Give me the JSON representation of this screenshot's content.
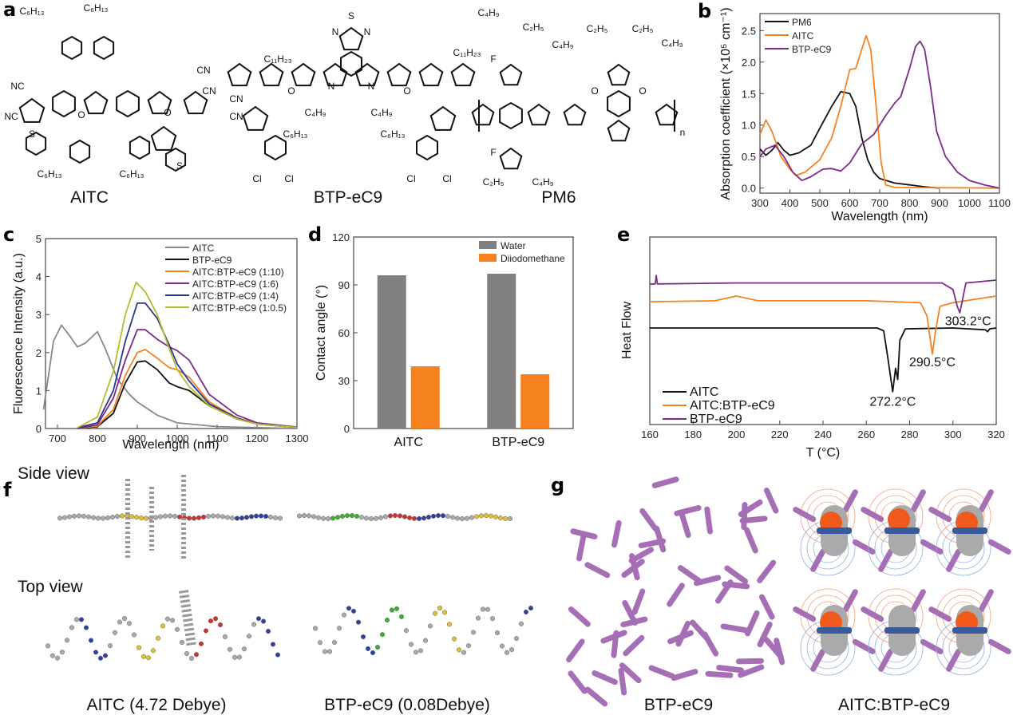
{
  "panels": {
    "a": "a",
    "b": "b",
    "c": "c",
    "d": "d",
    "e": "e",
    "f": "f",
    "g": "g"
  },
  "structures": {
    "names": [
      "AITC",
      "BTP-eC9",
      "PM6"
    ],
    "aitc_labels": [
      "C₆H₁₃",
      "C₆H₁₃",
      "C₆H₁₃",
      "C₆H₁₃",
      "NC",
      "NC",
      "CN",
      "CN",
      "O",
      "O",
      "S",
      "S"
    ],
    "btp_labels": [
      "C₁₁H₂₃",
      "C₁₁H₂₃",
      "C₄H₉",
      "C₄H₉",
      "C₆H₁₃",
      "C₆H₁₃",
      "CN",
      "CN",
      "Cl",
      "Cl",
      "Cl",
      "Cl",
      "O",
      "O",
      "S",
      "N",
      "N",
      "N",
      "N"
    ],
    "pm6_labels": [
      "C₄H₉",
      "C₂H₅",
      "C₄H₉",
      "C₂H₅",
      "C₂H₅",
      "C₄H₉",
      "C₂H₅",
      "C₄H₉",
      "F",
      "F",
      "O",
      "O",
      "n"
    ]
  },
  "chart_data": [
    {
      "panel": "b",
      "type": "line",
      "xlabel": "Wavelength (nm)",
      "ylabel": "Absorption coefficient (×10⁵ cm⁻¹)",
      "xlim": [
        300,
        1100
      ],
      "ylim": [
        -0.08,
        2.77
      ],
      "xticks": [
        300,
        400,
        500,
        600,
        700,
        800,
        900,
        1000,
        1100
      ],
      "yticks": [
        0.0,
        0.5,
        1.0,
        1.5,
        2.0,
        2.5
      ],
      "ytick_labels": [
        "0.0",
        "0.5",
        "1.0",
        "1.5",
        "2.0",
        "2.5"
      ],
      "legend": "top-left",
      "series": [
        {
          "name": "PM6",
          "color": "#111111",
          "points": [
            [
              300,
              0.62
            ],
            [
              320,
              0.52
            ],
            [
              340,
              0.6
            ],
            [
              360,
              0.72
            ],
            [
              380,
              0.6
            ],
            [
              400,
              0.52
            ],
            [
              430,
              0.56
            ],
            [
              470,
              0.68
            ],
            [
              500,
              0.95
            ],
            [
              540,
              1.3
            ],
            [
              570,
              1.53
            ],
            [
              600,
              1.5
            ],
            [
              620,
              1.3
            ],
            [
              640,
              0.8
            ],
            [
              660,
              0.45
            ],
            [
              680,
              0.25
            ],
            [
              700,
              0.15
            ],
            [
              750,
              0.08
            ],
            [
              800,
              0.05
            ],
            [
              850,
              0.02
            ],
            [
              900,
              0.0
            ]
          ]
        },
        {
          "name": "AITC",
          "color": "#f5821f",
          "points": [
            [
              300,
              0.85
            ],
            [
              320,
              1.08
            ],
            [
              340,
              0.9
            ],
            [
              370,
              0.5
            ],
            [
              400,
              0.3
            ],
            [
              420,
              0.2
            ],
            [
              450,
              0.25
            ],
            [
              500,
              0.45
            ],
            [
              540,
              0.8
            ],
            [
              570,
              1.3
            ],
            [
              600,
              1.88
            ],
            [
              620,
              1.9
            ],
            [
              640,
              2.2
            ],
            [
              655,
              2.42
            ],
            [
              670,
              2.2
            ],
            [
              690,
              1.2
            ],
            [
              705,
              0.4
            ],
            [
              720,
              0.05
            ],
            [
              750,
              0.01
            ],
            [
              1100,
              0.0
            ]
          ]
        },
        {
          "name": "BTP-eC9",
          "color": "#7b2a8a",
          "points": [
            [
              300,
              0.5
            ],
            [
              320,
              0.62
            ],
            [
              350,
              0.68
            ],
            [
              380,
              0.5
            ],
            [
              410,
              0.25
            ],
            [
              440,
              0.12
            ],
            [
              470,
              0.18
            ],
            [
              510,
              0.3
            ],
            [
              540,
              0.31
            ],
            [
              570,
              0.27
            ],
            [
              600,
              0.4
            ],
            [
              640,
              0.7
            ],
            [
              680,
              0.85
            ],
            [
              720,
              1.15
            ],
            [
              750,
              1.35
            ],
            [
              770,
              1.45
            ],
            [
              800,
              1.9
            ],
            [
              820,
              2.25
            ],
            [
              835,
              2.33
            ],
            [
              850,
              2.2
            ],
            [
              870,
              1.6
            ],
            [
              890,
              0.9
            ],
            [
              920,
              0.5
            ],
            [
              960,
              0.25
            ],
            [
              1000,
              0.12
            ],
            [
              1050,
              0.05
            ],
            [
              1100,
              0.0
            ]
          ]
        }
      ]
    },
    {
      "panel": "c",
      "type": "line",
      "xlabel": "Wavelength (nm)",
      "ylabel": "Fluorescence Intensity (a.u.)",
      "xlim": [
        670,
        1300
      ],
      "ylim": [
        0,
        5
      ],
      "xticks": [
        700,
        800,
        900,
        1000,
        1100,
        1200,
        1300
      ],
      "yticks": [
        0,
        1,
        2,
        3,
        4,
        5
      ],
      "ytick_labels": [
        "0",
        "1",
        "2",
        "3",
        "4",
        "5"
      ],
      "legend": "top-right",
      "series": [
        {
          "name": "AITC",
          "color": "#888888",
          "points": [
            [
              665,
              0.5
            ],
            [
              690,
              2.3
            ],
            [
              710,
              2.72
            ],
            [
              730,
              2.45
            ],
            [
              750,
              2.15
            ],
            [
              770,
              2.25
            ],
            [
              800,
              2.55
            ],
            [
              820,
              2.1
            ],
            [
              850,
              1.3
            ],
            [
              880,
              0.9
            ],
            [
              900,
              0.7
            ],
            [
              950,
              0.35
            ],
            [
              1000,
              0.15
            ],
            [
              1100,
              0.05
            ],
            [
              1300,
              0.0
            ]
          ]
        },
        {
          "name": "BTP-eC9",
          "color": "#111111",
          "points": [
            [
              750,
              0
            ],
            [
              800,
              0.05
            ],
            [
              840,
              0.4
            ],
            [
              870,
              1.2
            ],
            [
              900,
              1.75
            ],
            [
              920,
              1.78
            ],
            [
              950,
              1.55
            ],
            [
              980,
              1.2
            ],
            [
              1000,
              1.1
            ],
            [
              1030,
              1.0
            ],
            [
              1080,
              0.6
            ],
            [
              1150,
              0.25
            ],
            [
              1200,
              0.12
            ],
            [
              1300,
              0.03
            ]
          ]
        },
        {
          "name": "AITC:BTP-eC9 (1:10)",
          "color": "#f5821f",
          "points": [
            [
              750,
              0
            ],
            [
              800,
              0.07
            ],
            [
              840,
              0.5
            ],
            [
              870,
              1.4
            ],
            [
              900,
              2.0
            ],
            [
              920,
              2.08
            ],
            [
              950,
              1.85
            ],
            [
              980,
              1.6
            ],
            [
              1000,
              1.55
            ],
            [
              1030,
              1.35
            ],
            [
              1080,
              0.7
            ],
            [
              1150,
              0.28
            ],
            [
              1200,
              0.13
            ],
            [
              1300,
              0.03
            ]
          ]
        },
        {
          "name": "AITC:BTP-eC9 (1:6)",
          "color": "#7b2a8a",
          "points": [
            [
              750,
              0
            ],
            [
              800,
              0.1
            ],
            [
              840,
              0.8
            ],
            [
              870,
              1.8
            ],
            [
              900,
              2.6
            ],
            [
              920,
              2.6
            ],
            [
              950,
              2.35
            ],
            [
              980,
              2.15
            ],
            [
              1000,
              2.05
            ],
            [
              1030,
              1.8
            ],
            [
              1080,
              0.9
            ],
            [
              1150,
              0.35
            ],
            [
              1200,
              0.15
            ],
            [
              1300,
              0.04
            ]
          ]
        },
        {
          "name": "AITC:BTP-eC9 (1:4)",
          "color": "#2b3590",
          "points": [
            [
              750,
              0.02
            ],
            [
              800,
              0.15
            ],
            [
              840,
              1.0
            ],
            [
              870,
              2.3
            ],
            [
              900,
              3.3
            ],
            [
              920,
              3.3
            ],
            [
              950,
              2.9
            ],
            [
              980,
              2.2
            ],
            [
              1000,
              1.7
            ],
            [
              1030,
              1.25
            ],
            [
              1080,
              0.65
            ],
            [
              1150,
              0.27
            ],
            [
              1200,
              0.12
            ],
            [
              1300,
              0.03
            ]
          ]
        },
        {
          "name": "AITC:BTP-eC9 (1:0.5)",
          "color": "#b5bd2e",
          "points": [
            [
              750,
              0.02
            ],
            [
              800,
              0.3
            ],
            [
              840,
              1.5
            ],
            [
              870,
              3.0
            ],
            [
              897,
              3.85
            ],
            [
              920,
              3.6
            ],
            [
              950,
              3.0
            ],
            [
              980,
              2.1
            ],
            [
              1000,
              1.55
            ],
            [
              1030,
              1.1
            ],
            [
              1080,
              0.6
            ],
            [
              1150,
              0.25
            ],
            [
              1200,
              0.12
            ],
            [
              1300,
              0.03
            ]
          ]
        }
      ]
    },
    {
      "panel": "d",
      "type": "bar",
      "ylabel": "Contact angle (°)",
      "categories": [
        "AITC",
        "BTP-eC9"
      ],
      "ylim": [
        0,
        120
      ],
      "yticks": [
        0,
        30,
        60,
        90,
        120
      ],
      "ytick_labels": [
        "0",
        "30",
        "60",
        "90",
        "120"
      ],
      "legend": "top-right",
      "series": [
        {
          "name": "Water",
          "color": "#808080",
          "values": [
            96,
            97
          ]
        },
        {
          "name": "Diiodomethane",
          "color": "#f5821f",
          "values": [
            39,
            34
          ]
        }
      ]
    },
    {
      "panel": "e",
      "type": "line",
      "xlabel": "T (°C)",
      "ylabel": "Heat Flow",
      "xlim": [
        160,
        320
      ],
      "ylim": [
        0,
        10
      ],
      "xticks": [
        160,
        180,
        200,
        220,
        240,
        260,
        280,
        300,
        320
      ],
      "legend": "bottom-left",
      "series": [
        {
          "name": "AITC",
          "color": "#111111",
          "points": [
            [
              160,
              5.15
            ],
            [
              265,
              5.15
            ],
            [
              268,
              5.0
            ],
            [
              270,
              3.5
            ],
            [
              272.2,
              1.75
            ],
            [
              273.5,
              3.0
            ],
            [
              274.5,
              2.4
            ],
            [
              275.5,
              4.5
            ],
            [
              278,
              5.1
            ],
            [
              300,
              5.15
            ],
            [
              315,
              5.05
            ],
            [
              316,
              4.95
            ],
            [
              317,
              5.1
            ],
            [
              320,
              5.15
            ]
          ]
        },
        {
          "name": "AITC:BTP-eC9",
          "color": "#f5821f",
          "points": [
            [
              160,
              6.55
            ],
            [
              190,
              6.6
            ],
            [
              200,
              6.85
            ],
            [
              210,
              6.6
            ],
            [
              260,
              6.6
            ],
            [
              285,
              6.5
            ],
            [
              288,
              5.8
            ],
            [
              290.5,
              3.75
            ],
            [
              292,
              5.0
            ],
            [
              294,
              6.3
            ],
            [
              300,
              6.5
            ],
            [
              320,
              6.85
            ]
          ]
        },
        {
          "name": "BTP-eC9",
          "color": "#7b2a8a",
          "points": [
            [
              160,
              7.5
            ],
            [
              162.5,
              7.5
            ],
            [
              163,
              7.95
            ],
            [
              163.5,
              7.5
            ],
            [
              200,
              7.55
            ],
            [
              295,
              7.55
            ],
            [
              300,
              7.2
            ],
            [
              302,
              6.3
            ],
            [
              303.2,
              5.96
            ],
            [
              304.5,
              6.7
            ],
            [
              306,
              7.55
            ],
            [
              320,
              7.7
            ]
          ]
        }
      ],
      "annotations": [
        {
          "text": "272.2°C",
          "x": 272.2,
          "y": 1.0
        },
        {
          "text": "290.5°C",
          "x": 290.5,
          "y": 3.1
        },
        {
          "text": "303.2°C",
          "x": 307,
          "y": 5.3
        }
      ]
    }
  ],
  "panel_f": {
    "side_view": "Side view",
    "top_view": "Top view",
    "caption_aitc": "AITC (4.72 Debye)",
    "caption_btp": "BTP-eC9 (0.08Debye)"
  },
  "panel_g": {
    "caption_left": "BTP-eC9",
    "caption_right": "AITC:BTP-eC9",
    "rod_color": "#a66fb5"
  }
}
